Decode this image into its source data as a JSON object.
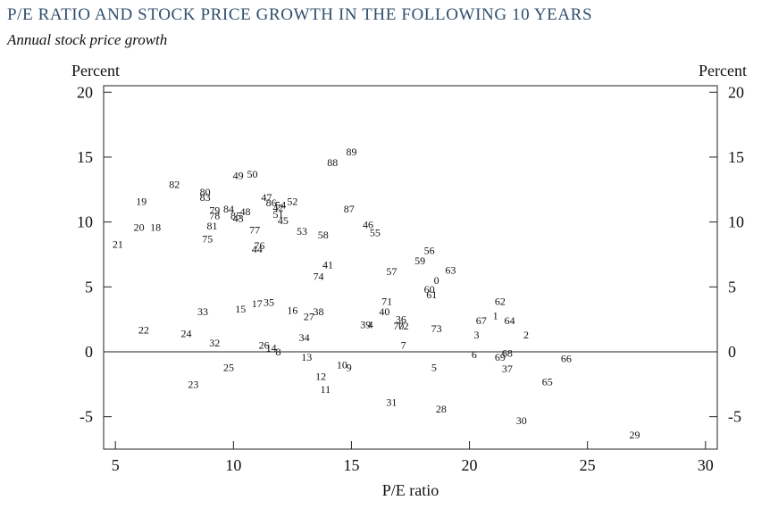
{
  "header": {
    "title": "P/E RATIO AND STOCK PRICE GROWTH IN THE FOLLOWING 10 YEARS",
    "subtitle": "Annual stock price growth"
  },
  "chart_data": {
    "type": "scatter",
    "title": "P/E RATIO AND STOCK PRICE GROWTH IN THE FOLLOWING 10 YEARS",
    "subtitle": "Annual stock price growth",
    "xlabel": "P/E ratio",
    "ylabel_left": "Percent",
    "ylabel_right": "Percent",
    "xlim": [
      4.5,
      30.5
    ],
    "ylim": [
      -7.5,
      20.5
    ],
    "xticks": [
      5,
      10,
      15,
      20,
      25,
      30
    ],
    "yticks": [
      20,
      15,
      10,
      5,
      0,
      -5
    ],
    "xtick_labels": [
      "5",
      "10",
      "15",
      "20",
      "25",
      "30"
    ],
    "ytick_labels": [
      "20",
      "15",
      "10",
      "5",
      "0",
      "-5"
    ],
    "zero_line": true,
    "grid": false,
    "marker": "year-label",
    "points": [
      {
        "label": "0",
        "x": 18.6,
        "y": 5.5
      },
      {
        "label": "1",
        "x": 21.1,
        "y": 2.8
      },
      {
        "label": "2",
        "x": 22.4,
        "y": 1.3
      },
      {
        "label": "3",
        "x": 20.3,
        "y": 1.3
      },
      {
        "label": "4",
        "x": 15.8,
        "y": 2.1
      },
      {
        "label": "5",
        "x": 18.5,
        "y": -1.2
      },
      {
        "label": "6",
        "x": 20.2,
        "y": -0.2
      },
      {
        "label": "7",
        "x": 17.2,
        "y": 0.5
      },
      {
        "label": "8",
        "x": 11.9,
        "y": 0.0
      },
      {
        "label": "9",
        "x": 14.9,
        "y": -1.2
      },
      {
        "label": "10",
        "x": 14.6,
        "y": -1.0
      },
      {
        "label": "11",
        "x": 13.9,
        "y": -2.9
      },
      {
        "label": "12",
        "x": 13.7,
        "y": -1.9
      },
      {
        "label": "13",
        "x": 13.1,
        "y": -0.4
      },
      {
        "label": "14",
        "x": 11.6,
        "y": 0.3
      },
      {
        "label": "15",
        "x": 10.3,
        "y": 3.3
      },
      {
        "label": "16",
        "x": 12.5,
        "y": 3.2
      },
      {
        "label": "17",
        "x": 11.0,
        "y": 3.7
      },
      {
        "label": "18",
        "x": 6.7,
        "y": 9.6
      },
      {
        "label": "19",
        "x": 6.1,
        "y": 11.6
      },
      {
        "label": "20",
        "x": 6.0,
        "y": 9.6
      },
      {
        "label": "21",
        "x": 5.1,
        "y": 8.3
      },
      {
        "label": "22",
        "x": 6.2,
        "y": 1.7
      },
      {
        "label": "23",
        "x": 8.3,
        "y": -2.5
      },
      {
        "label": "24",
        "x": 8.0,
        "y": 1.4
      },
      {
        "label": "25",
        "x": 9.8,
        "y": -1.2
      },
      {
        "label": "26",
        "x": 11.3,
        "y": 0.5
      },
      {
        "label": "27",
        "x": 13.2,
        "y": 2.7
      },
      {
        "label": "28",
        "x": 18.8,
        "y": -4.4
      },
      {
        "label": "29",
        "x": 27.0,
        "y": -6.4
      },
      {
        "label": "30",
        "x": 22.2,
        "y": -5.3
      },
      {
        "label": "31",
        "x": 16.7,
        "y": -3.9
      },
      {
        "label": "32",
        "x": 9.2,
        "y": 0.7
      },
      {
        "label": "33",
        "x": 8.7,
        "y": 3.1
      },
      {
        "label": "34",
        "x": 13.0,
        "y": 1.1
      },
      {
        "label": "35",
        "x": 11.5,
        "y": 3.8
      },
      {
        "label": "36",
        "x": 17.1,
        "y": 2.5
      },
      {
        "label": "37",
        "x": 21.6,
        "y": -1.3
      },
      {
        "label": "38",
        "x": 13.6,
        "y": 3.1
      },
      {
        "label": "39",
        "x": 15.6,
        "y": 2.1
      },
      {
        "label": "40",
        "x": 16.4,
        "y": 3.1
      },
      {
        "label": "41",
        "x": 14.0,
        "y": 6.7
      },
      {
        "label": "42",
        "x": 11.9,
        "y": 11.1
      },
      {
        "label": "43",
        "x": 10.2,
        "y": 10.3
      },
      {
        "label": "44",
        "x": 11.0,
        "y": 7.9
      },
      {
        "label": "45",
        "x": 12.1,
        "y": 10.1
      },
      {
        "label": "46",
        "x": 15.7,
        "y": 9.8
      },
      {
        "label": "47",
        "x": 11.4,
        "y": 11.9
      },
      {
        "label": "48",
        "x": 10.5,
        "y": 10.8
      },
      {
        "label": "49",
        "x": 10.2,
        "y": 13.6
      },
      {
        "label": "50",
        "x": 10.8,
        "y": 13.7
      },
      {
        "label": "51",
        "x": 11.9,
        "y": 10.6
      },
      {
        "label": "52",
        "x": 12.5,
        "y": 11.6
      },
      {
        "label": "53",
        "x": 12.9,
        "y": 9.3
      },
      {
        "label": "54",
        "x": 12.0,
        "y": 11.3
      },
      {
        "label": "55",
        "x": 16.0,
        "y": 9.2
      },
      {
        "label": "56",
        "x": 18.3,
        "y": 7.8
      },
      {
        "label": "57",
        "x": 16.7,
        "y": 6.2
      },
      {
        "label": "58",
        "x": 13.8,
        "y": 9.0
      },
      {
        "label": "59",
        "x": 17.9,
        "y": 7.0
      },
      {
        "label": "60",
        "x": 18.3,
        "y": 4.8
      },
      {
        "label": "61",
        "x": 18.4,
        "y": 4.4
      },
      {
        "label": "62",
        "x": 21.3,
        "y": 3.9
      },
      {
        "label": "63",
        "x": 19.2,
        "y": 6.3
      },
      {
        "label": "64",
        "x": 21.7,
        "y": 2.4
      },
      {
        "label": "65",
        "x": 23.3,
        "y": -2.3
      },
      {
        "label": "66",
        "x": 24.1,
        "y": -0.5
      },
      {
        "label": "67",
        "x": 20.5,
        "y": 2.4
      },
      {
        "label": "68",
        "x": 21.6,
        "y": -0.1
      },
      {
        "label": "69",
        "x": 21.3,
        "y": -0.4
      },
      {
        "label": "70",
        "x": 17.0,
        "y": 2.0
      },
      {
        "label": "71",
        "x": 16.5,
        "y": 3.9
      },
      {
        "label": "72",
        "x": 17.2,
        "y": 2.0
      },
      {
        "label": "73",
        "x": 18.6,
        "y": 1.8
      },
      {
        "label": "74",
        "x": 13.6,
        "y": 5.8
      },
      {
        "label": "75",
        "x": 8.9,
        "y": 8.7
      },
      {
        "label": "76",
        "x": 11.1,
        "y": 8.2
      },
      {
        "label": "77",
        "x": 10.9,
        "y": 9.4
      },
      {
        "label": "78",
        "x": 9.2,
        "y": 10.5
      },
      {
        "label": "79",
        "x": 9.2,
        "y": 10.9
      },
      {
        "label": "80",
        "x": 8.8,
        "y": 12.3
      },
      {
        "label": "81",
        "x": 9.1,
        "y": 9.7
      },
      {
        "label": "82",
        "x": 7.5,
        "y": 12.9
      },
      {
        "label": "83",
        "x": 8.8,
        "y": 11.9
      },
      {
        "label": "84",
        "x": 9.8,
        "y": 11.0
      },
      {
        "label": "85",
        "x": 10.1,
        "y": 10.5
      },
      {
        "label": "86",
        "x": 11.6,
        "y": 11.5
      },
      {
        "label": "87",
        "x": 14.9,
        "y": 11.0
      },
      {
        "label": "88",
        "x": 14.2,
        "y": 14.6
      },
      {
        "label": "89",
        "x": 15.0,
        "y": 15.4
      }
    ]
  }
}
